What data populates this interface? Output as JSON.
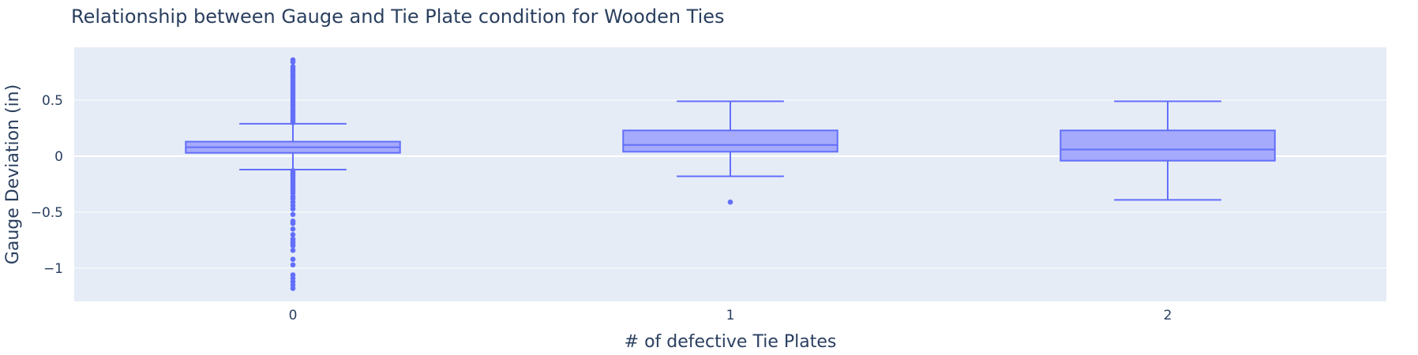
{
  "chart_data": {
    "type": "box",
    "title": "Relationship between Gauge and Tie Plate condition for Wooden Ties",
    "xlabel": "# of defective Tie Plates",
    "ylabel": "Gauge Deviation (in)",
    "categories": [
      "0",
      "1",
      "2"
    ],
    "ylim": [
      -1.3,
      0.95
    ],
    "yticks": [
      0.5,
      0,
      -0.5,
      -1
    ],
    "ytick_labels": [
      "0.5",
      "0",
      "−0.5",
      "−1"
    ],
    "grid": true,
    "colors": {
      "plot_bg": "#e5ecf6",
      "grid": "#ffffff",
      "box_line": "#636efa",
      "box_fill": "#a5aafc",
      "text": "#2a3f5f"
    },
    "boxes": [
      {
        "category": "0",
        "min": -0.12,
        "q1": 0.03,
        "median": 0.08,
        "q3": 0.13,
        "max": 0.29,
        "outliers": [
          0.86,
          0.84,
          0.8,
          0.78,
          0.76,
          0.74,
          0.72,
          0.7,
          0.68,
          0.66,
          0.64,
          0.62,
          0.6,
          0.58,
          0.56,
          0.54,
          0.52,
          0.5,
          0.48,
          0.46,
          0.44,
          0.42,
          0.4,
          0.38,
          0.36,
          0.34,
          0.32,
          0.3,
          -0.13,
          -0.15,
          -0.17,
          -0.19,
          -0.21,
          -0.23,
          -0.25,
          -0.27,
          -0.29,
          -0.31,
          -0.33,
          -0.36,
          -0.38,
          -0.41,
          -0.44,
          -0.47,
          -0.52,
          -0.58,
          -0.6,
          -0.65,
          -0.7,
          -0.74,
          -0.76,
          -0.78,
          -0.8,
          -0.84,
          -0.92,
          -0.97,
          -1.06,
          -1.09,
          -1.12,
          -1.15,
          -1.18
        ]
      },
      {
        "category": "1",
        "min": -0.18,
        "q1": 0.04,
        "median": 0.1,
        "q3": 0.23,
        "max": 0.49,
        "outliers": [
          -0.41
        ]
      },
      {
        "category": "2",
        "min": -0.39,
        "q1": -0.04,
        "median": 0.06,
        "q3": 0.23,
        "max": 0.49,
        "outliers": []
      }
    ]
  }
}
